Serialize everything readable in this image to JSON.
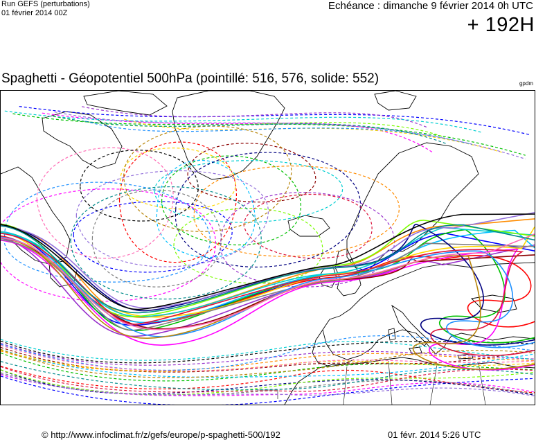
{
  "header": {
    "run_label": "Run GEFS (perturbations)",
    "run_date": "01 février 2014 00Z",
    "valid_time": "Echéance : dimanche 9 février 2014 0h UTC",
    "lead_time": "+ 192H"
  },
  "map": {
    "title": "Spaghetti - Géopotentiel 500hPa (pointillé: 516, 576, solide: 552)",
    "unit": "gpdm",
    "region": "Atlantique Nord / Europe",
    "contours": {
      "dashed_levels_gpdm": [
        516,
        576
      ],
      "solid_level_gpdm": 552
    },
    "colors": {
      "coastline": "#000000",
      "members": [
        "#0000ff",
        "#ff0000",
        "#00c000",
        "#ff8c00",
        "#9932cc",
        "#00bfff",
        "#ff00ff",
        "#8b0000",
        "#ffd700",
        "#808080",
        "#00ced1",
        "#000080",
        "#7cfc00",
        "#dc143c",
        "#1e90ff",
        "#b8860b",
        "#9370db",
        "#ff69b4",
        "#008b8b",
        "#000000"
      ]
    }
  },
  "footer": {
    "url": "© http://www.infoclimat.fr/z/gefs/europe/p-spaghetti-500/192",
    "timestamp": "01 févr. 2014  5:26 UTC"
  }
}
